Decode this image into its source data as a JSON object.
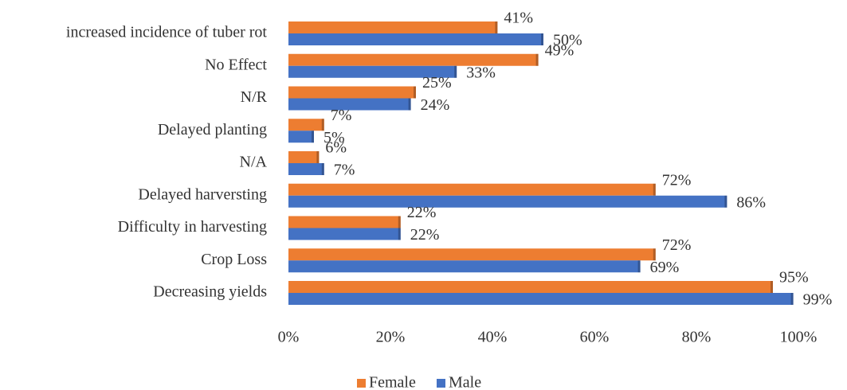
{
  "chart_data": {
    "type": "hbar",
    "categories": [
      "increased incidence of tuber rot",
      "No Effect",
      "N/R",
      "Delayed  planting",
      "N/A",
      "Delayed harversting",
      "Difficulty in harvesting",
      "Crop Loss",
      "Decreasing yields"
    ],
    "series": [
      {
        "name": "Female",
        "color": "#ed7d31",
        "values": [
          41,
          49,
          25,
          7,
          6,
          72,
          22,
          72,
          95
        ],
        "value_labels": [
          "41%",
          "49%",
          "25%",
          "7%",
          "6%",
          "72%",
          "22%",
          "72%",
          "95%"
        ]
      },
      {
        "name": "Male",
        "color": "#4472c4",
        "values": [
          50,
          33,
          24,
          5,
          7,
          86,
          22,
          69,
          99
        ],
        "value_labels": [
          "50%",
          "33%",
          "24%",
          "5%",
          "7%",
          "86%",
          "22%",
          "69%",
          "99%"
        ]
      }
    ],
    "xlim": [
      0,
      100
    ],
    "xticks": [
      {
        "value": 0,
        "label": "0%"
      },
      {
        "value": 20,
        "label": "20%"
      },
      {
        "value": 40,
        "label": "40%"
      },
      {
        "value": 60,
        "label": "60%"
      },
      {
        "value": 80,
        "label": "80%"
      },
      {
        "value": 100,
        "label": "100%"
      }
    ],
    "legend": "bottom"
  }
}
